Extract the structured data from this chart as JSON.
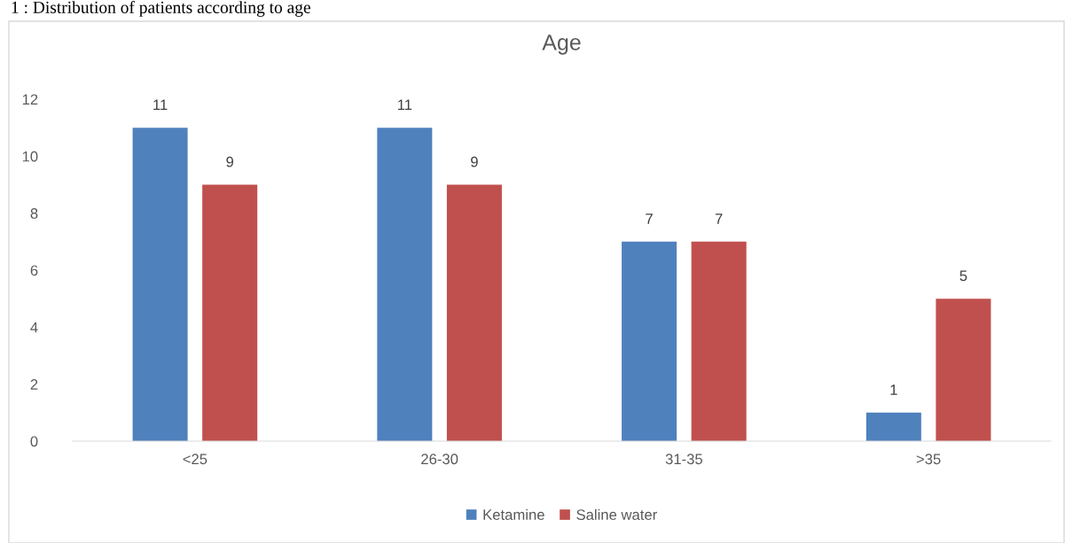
{
  "chart_data": {
    "type": "bar",
    "title": "Age",
    "categories": [
      "<25",
      "26-30",
      "31-35",
      ">35"
    ],
    "series": [
      {
        "name": "Ketamine",
        "color": "#4f81bd",
        "values": [
          11,
          11,
          7,
          1
        ]
      },
      {
        "name": "Saline water",
        "color": "#c0504d",
        "values": [
          9,
          9,
          7,
          5
        ]
      }
    ],
    "ylim": [
      0,
      12
    ],
    "yticks": [
      0,
      2,
      4,
      6,
      8,
      10,
      12
    ],
    "grid": false,
    "legend": "bottom",
    "data_labels": true,
    "annotations": [
      "1 : Distribution of patients according to age"
    ]
  }
}
